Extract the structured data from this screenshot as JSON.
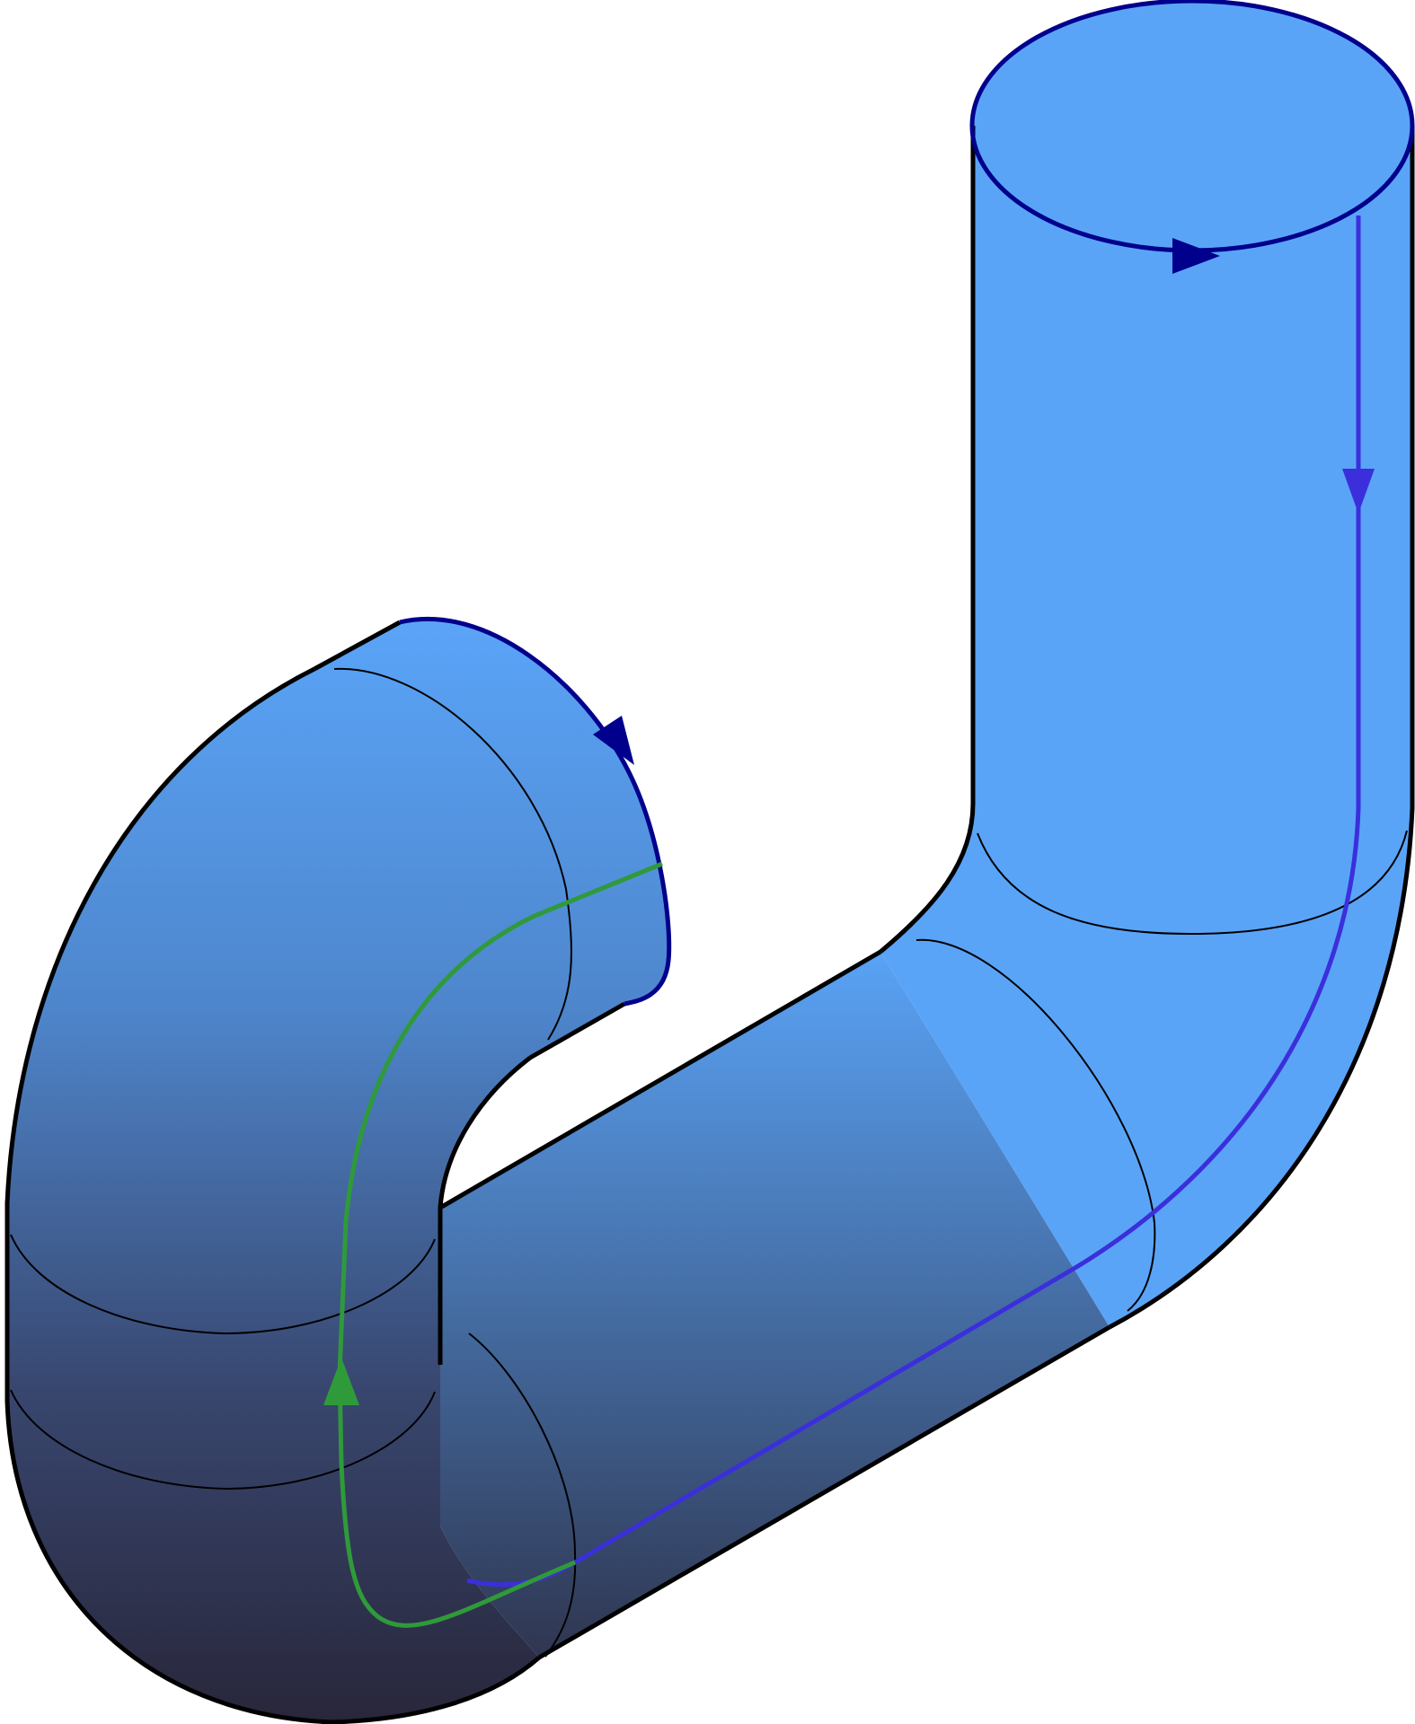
{
  "figure": {
    "subject": "pipe-surface",
    "colors": {
      "pipe_light": "#5aa4f8",
      "pipe_mid": "#4a80c6",
      "pipe_dark": "#2b2a3a",
      "outline": "#000000",
      "boundary_curve": "#00008c",
      "blue_curve": "#3b2fdc",
      "green_curve": "#2f9a3a",
      "background": "#ffffff"
    },
    "icons": {
      "top_arrow": "arrow-right-icon",
      "right_arrow": "arrow-down-icon",
      "left_arrow": "arrow-down-right-icon",
      "green_arrow": "arrow-up-icon"
    }
  }
}
